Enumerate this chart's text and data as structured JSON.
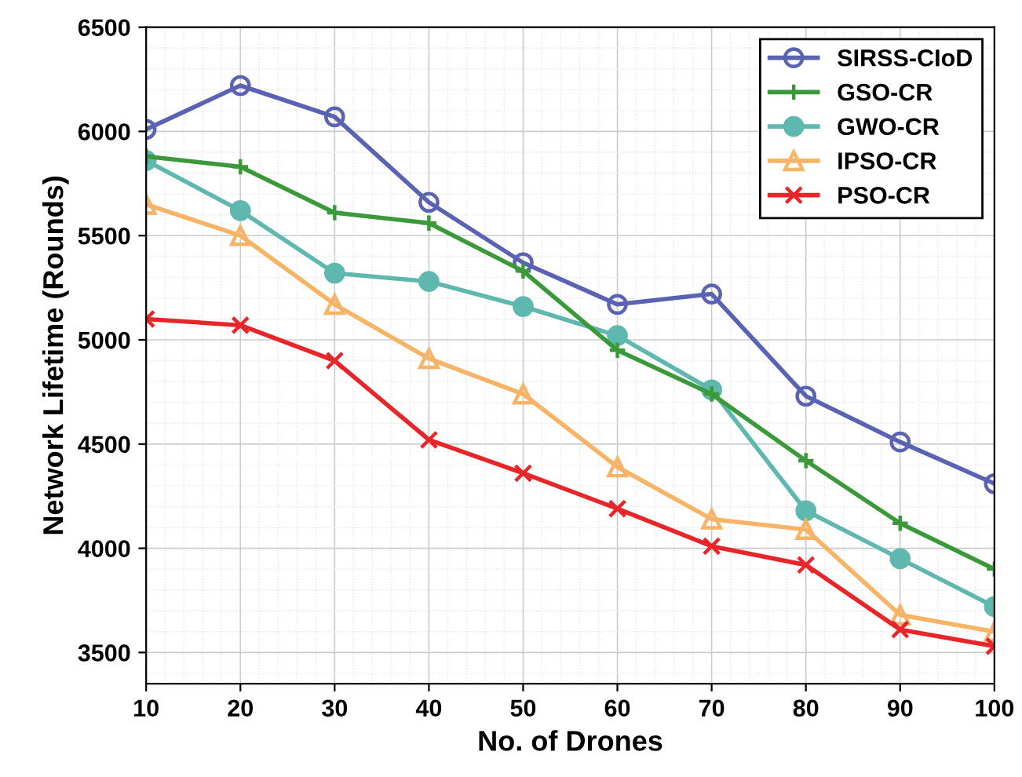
{
  "chart_data": {
    "type": "line",
    "xlabel": "No. of Drones",
    "ylabel": "Network Lifetime (Rounds)",
    "x": [
      10,
      20,
      30,
      40,
      50,
      60,
      70,
      80,
      90,
      100
    ],
    "xlim": [
      10,
      100
    ],
    "xticks": [
      10,
      20,
      30,
      40,
      50,
      60,
      70,
      80,
      90,
      100
    ],
    "ylim": [
      3350,
      6500
    ],
    "yticks": [
      3500,
      4000,
      4500,
      5000,
      5500,
      6000,
      6500
    ],
    "grid": true,
    "legend": "top right",
    "line_style": "solid",
    "series": [
      {
        "name": "SIRSS-CIoD",
        "color": "#5a62b4",
        "marker": "circle",
        "values": [
          6010,
          6220,
          6070,
          5660,
          5370,
          5170,
          5220,
          4730,
          4510,
          4310
        ]
      },
      {
        "name": "GSO-CR",
        "color": "#3a9a3a",
        "marker": "cross",
        "values": [
          5880,
          5830,
          5610,
          5560,
          5330,
          4950,
          4740,
          4420,
          4120,
          3900
        ]
      },
      {
        "name": "GWO-CR",
        "color": "#5fb8b0",
        "marker": "circle",
        "values": [
          5860,
          5620,
          5320,
          5280,
          5160,
          5020,
          4760,
          4180,
          3950,
          3720
        ]
      },
      {
        "name": "IPSO-CR",
        "color": "#f7b366",
        "marker": "triangle",
        "values": [
          5650,
          5500,
          5170,
          4910,
          4740,
          4390,
          4140,
          4090,
          3680,
          3600
        ]
      },
      {
        "name": "PSO-CR",
        "color": "#e8262a",
        "marker": "x",
        "values": [
          5100,
          5070,
          4900,
          4520,
          4360,
          4190,
          4010,
          3920,
          3610,
          3530
        ]
      }
    ]
  }
}
